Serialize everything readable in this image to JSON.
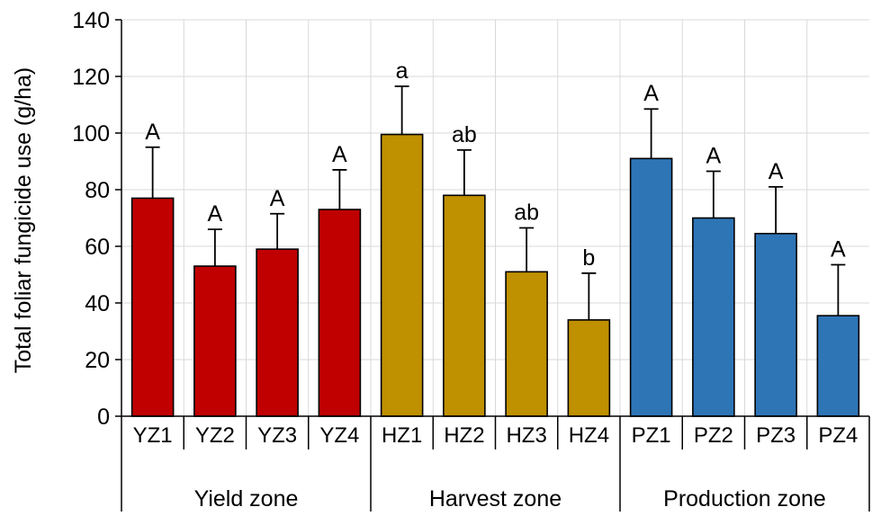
{
  "chart_data": {
    "type": "bar",
    "ylabel": "Total foliar fungicide use (g/ha)",
    "ylim": [
      0,
      140
    ],
    "yticks": [
      0,
      20,
      40,
      60,
      80,
      100,
      120,
      140
    ],
    "grid": true,
    "categories": [
      "YZ1",
      "YZ2",
      "YZ3",
      "YZ4",
      "HZ1",
      "HZ2",
      "HZ3",
      "HZ4",
      "PZ1",
      "PZ2",
      "PZ3",
      "PZ4"
    ],
    "values": [
      77,
      53,
      59,
      73,
      99.5,
      78,
      51,
      34,
      91,
      70,
      64.5,
      35.5
    ],
    "error_upper": [
      95,
      66,
      71.5,
      87,
      116.5,
      94,
      66.5,
      50.5,
      108.5,
      86.5,
      81,
      53.5
    ],
    "significance_letters": [
      "A",
      "A",
      "A",
      "A",
      "a",
      "ab",
      "ab",
      "b",
      "A",
      "A",
      "A",
      "A"
    ],
    "groups": [
      {
        "label": "Yield zone",
        "start": 0,
        "count": 4,
        "color": "#C00000"
      },
      {
        "label": "Harvest zone",
        "start": 4,
        "count": 4,
        "color": "#BF9000"
      },
      {
        "label": "Production zone",
        "start": 8,
        "count": 4,
        "color": "#2E75B6"
      }
    ]
  }
}
